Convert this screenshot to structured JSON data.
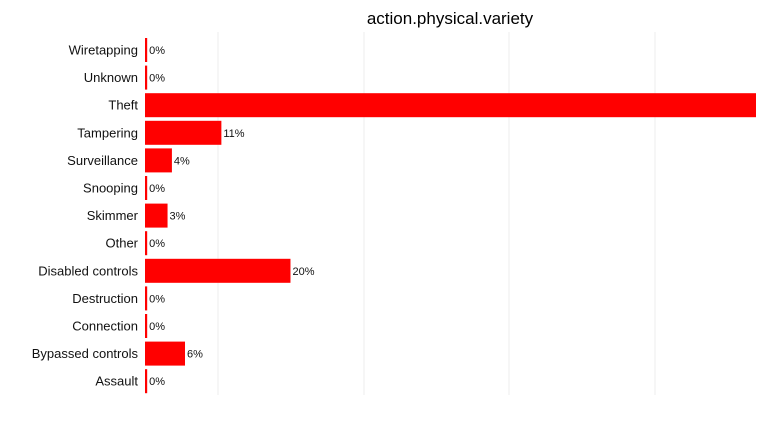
{
  "chart_data": {
    "type": "bar",
    "orientation": "horizontal",
    "title": "action.physical.variety",
    "xlabel": "",
    "ylabel": "",
    "categories": [
      "Wiretapping",
      "Unknown",
      "Theft",
      "Tampering",
      "Surveillance",
      "Snooping",
      "Skimmer",
      "Other",
      "Disabled controls",
      "Destruction",
      "Connection",
      "Bypassed controls",
      "Assault"
    ],
    "values": [
      0.003,
      0.003,
      0.84,
      0.105,
      0.037,
      0.003,
      0.031,
      0.003,
      0.2,
      0.003,
      0.003,
      0.055,
      0.003
    ],
    "labels": [
      "0%",
      "0%",
      "",
      "11%",
      "4%",
      "0%",
      "3%",
      "0%",
      "20%",
      "0%",
      "0%",
      "6%",
      "0%"
    ],
    "xlim": [
      0,
      0.84
    ],
    "grid": true,
    "bar_color": "#ff0000",
    "legend": "none"
  }
}
